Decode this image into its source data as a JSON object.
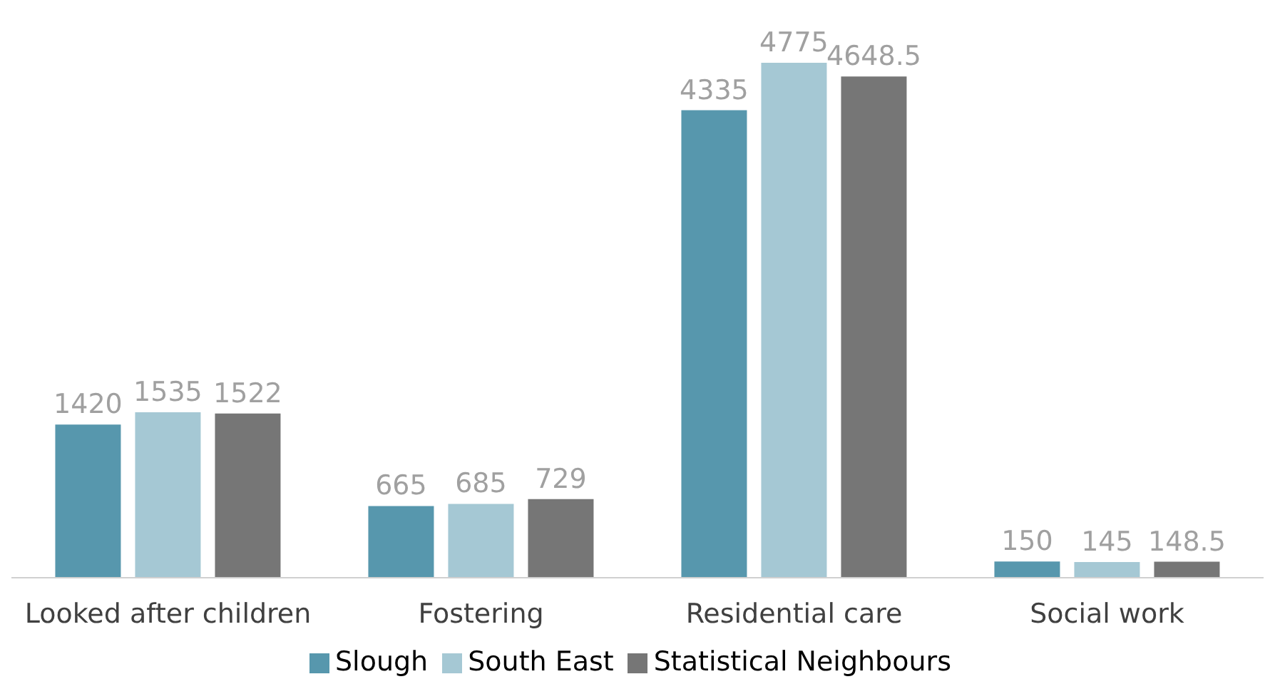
{
  "chart_data": {
    "type": "bar",
    "categories": [
      "Looked after children",
      "Fostering",
      "Residential care",
      "Social work"
    ],
    "series": [
      {
        "name": "Slough",
        "color": "#5797ad",
        "values": [
          1420,
          665,
          4335,
          150
        ]
      },
      {
        "name": "South East",
        "color": "#a5c8d4",
        "values": [
          1535,
          685,
          4775,
          145
        ]
      },
      {
        "name": "Statistical Neighbours",
        "color": "#767676",
        "values": [
          1522,
          729,
          4648.5,
          148.5
        ]
      }
    ],
    "data_labels": true,
    "legend": "bottom",
    "grid": false,
    "tick_labels": "x"
  }
}
